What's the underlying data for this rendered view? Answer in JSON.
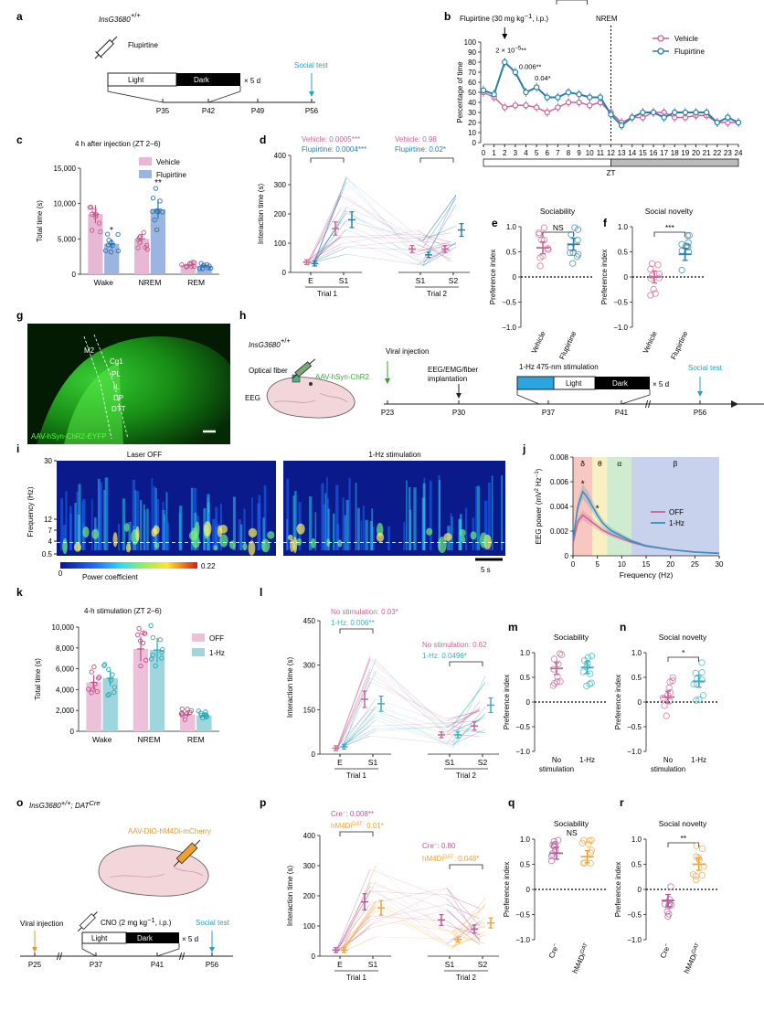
{
  "colors": {
    "vehicle": "#c86496",
    "flupirtine": "#2a7fa8",
    "off": "#c86496",
    "hz": "#3aaebf",
    "cre": "#b4589a",
    "hm4di": "#eda33a",
    "bar_veh": "#e6b8d4",
    "bar_flu": "#9ab6e0",
    "bar_off": "#ecc0d8",
    "bar_hz": "#9fd6de"
  },
  "panels": {
    "a": {
      "letter": "a",
      "genotype": "InsG3680",
      "genotype_sup": "+/+",
      "drug": "Flupirtine",
      "light": "Light",
      "dark": "Dark",
      "times": "× 5 d",
      "social": "Social test",
      "ticks": [
        "P35",
        "P42",
        "P49",
        "P56"
      ]
    },
    "b": {
      "letter": "b",
      "drug_label": "Flupirtine (30 mg kg",
      "drug_label2": "−1",
      "drug_label3": ", i.p.)",
      "nrem": "NREM",
      "ylabel": "Percentage of time",
      "xlabel": "ZT",
      "ann": [
        "2 × 10",
        "−5",
        "**",
        "0.006**",
        "0.04*"
      ],
      "legend": [
        "Vehicle",
        "Flupirtine"
      ],
      "yticks": [
        "0",
        "10",
        "20",
        "30",
        "40",
        "50",
        "60",
        "70",
        "80",
        "90",
        "100"
      ],
      "xticks": [
        "0",
        "1",
        "2",
        "3",
        "4",
        "5",
        "6",
        "7",
        "8",
        "9",
        "10",
        "11",
        "12",
        "13",
        "14",
        "15",
        "16",
        "17",
        "18",
        "19",
        "20",
        "21",
        "22",
        "23",
        "24"
      ]
    },
    "c": {
      "letter": "c",
      "title": "4 h after injection (ZT 2–6)",
      "ylabel": "Total time (s)",
      "yticks": [
        "0",
        "5,000",
        "10,000",
        "15,000"
      ],
      "cats": [
        "Wake",
        "NREM",
        "REM"
      ],
      "legend": [
        "Vehicle",
        "Flupirtine"
      ],
      "stars": [
        "*",
        "**"
      ]
    },
    "d": {
      "letter": "d",
      "ylabel": "Interaction time (s)",
      "yticks": [
        "0",
        "100",
        "200",
        "300",
        "400"
      ],
      "xticks": [
        "E",
        "S1",
        "S1",
        "S2"
      ],
      "trials": [
        "Trial 1",
        "Trial 2"
      ],
      "ann1": [
        "Vehicle: 0.0005***",
        "Flupirtine: 0.0004***"
      ],
      "ann2": [
        "Vehicle: 0.98",
        "Flupirtine: 0.02*"
      ]
    },
    "e": {
      "letter": "e",
      "title": "Sociability",
      "sig": "NS",
      "ylabel": "Preference index",
      "yticks": [
        "−1.0",
        "−0.5",
        "0",
        "0.5",
        "1.0"
      ],
      "cats": [
        "Vehicle",
        "Flupirtine"
      ]
    },
    "f": {
      "letter": "f",
      "title": "Social novelty",
      "sig": "***",
      "ylabel": "Preference index",
      "yticks": [
        "−1.0",
        "−0.5",
        "0",
        "0.5",
        "1.0"
      ],
      "cats": [
        "Vehicle",
        "Flupirtine"
      ]
    },
    "g": {
      "letter": "g",
      "regions": [
        "M2",
        "Cg1",
        "PL",
        "IL",
        "DP",
        "DTT"
      ],
      "caption": "AAV-hSyn-ChR2-EYFP"
    },
    "h": {
      "letter": "h",
      "genotype": "InsG3680",
      "genotype_sup": "+/+",
      "fiber": "Optical fiber",
      "virus": "AAV-hSyn-ChR2",
      "eeg": "EEG",
      "viral": "Viral injection",
      "implant1": "EEG/EMG/fiber",
      "implant2": "implantation",
      "stim": "1-Hz 475-nm stimulation",
      "light": "Light",
      "dark": "Dark",
      "times": "× 5 d",
      "social": "Social test",
      "ticks": [
        "P23",
        "P30",
        "P37",
        "P41",
        "P56"
      ]
    },
    "i": {
      "letter": "i",
      "titles": [
        "Laser OFF",
        "1-Hz stimulation"
      ],
      "ylabel": "Frequency (Hz)",
      "yticks": [
        "30",
        "12",
        "7",
        "4",
        "0.5"
      ],
      "cbar": [
        "0",
        "0.22"
      ],
      "cbar_label": "Power coefficient",
      "scale": "5 s"
    },
    "j": {
      "letter": "j",
      "ylabel": "EEG power (mV",
      "ylabel_sup": "2",
      "ylabel_end": " Hz",
      "ylabel_sup2": "−1",
      "ylabel_close": ")",
      "xlabel": "Frequency (Hz)",
      "yticks": [
        "0",
        "0.002",
        "0.004",
        "0.006",
        "0.008"
      ],
      "xticks": [
        "0",
        "5",
        "10",
        "15",
        "20",
        "25",
        "30"
      ],
      "bands": [
        "δ",
        "θ",
        "α",
        "β"
      ],
      "legend": [
        "OFF",
        "1-Hz"
      ],
      "stars": [
        "*",
        "*"
      ]
    },
    "k": {
      "letter": "k",
      "title": "4-h stimulation (ZT 2–6)",
      "ylabel": "Total time (s)",
      "yticks": [
        "0",
        "2,000",
        "4,000",
        "6,000",
        "8,000",
        "10,000"
      ],
      "cats": [
        "Wake",
        "NREM",
        "REM"
      ],
      "legend": [
        "OFF",
        "1-Hz"
      ]
    },
    "l": {
      "letter": "l",
      "ylabel": "Interaction time (s)",
      "yticks": [
        "0",
        "150",
        "300",
        "450"
      ],
      "xticks": [
        "E",
        "S1",
        "S1",
        "S2"
      ],
      "trials": [
        "Trial 1",
        "Trial 2"
      ],
      "ann1": [
        "No stimulation: 0.03*",
        "1-Hz: 0.006**"
      ],
      "ann2": [
        "No stimulation: 0.62",
        "1-Hz: 0.0496*"
      ]
    },
    "m": {
      "letter": "m",
      "title": "Sociability",
      "ylabel": "Preference index",
      "yticks": [
        "−1.0",
        "−0.5",
        "0",
        "0.5",
        "1.0"
      ],
      "cats": [
        "No",
        "stimulation",
        "1-Hz"
      ]
    },
    "n": {
      "letter": "n",
      "title": "Social novelty",
      "sig": "*",
      "ylabel": "Preference index",
      "yticks": [
        "−1.0",
        "−0.5",
        "0",
        "0.5",
        "1.0"
      ],
      "cats": [
        "No",
        "stimulation",
        "1-Hz"
      ]
    },
    "o": {
      "letter": "o",
      "genotype": "InsG3680",
      "genotype_sup": "+/+",
      "genotype2": "; DAT",
      "genotype2_sup": "Cre",
      "virus": "AAV-DIO-hM4Di-mCherry",
      "viral": "Viral injection",
      "cno": "CNO (2 mg kg",
      "cno_sup": "−1",
      "cno_end": ", i.p.)",
      "light": "Light",
      "dark": "Dark",
      "times": "× 5 d",
      "social": "Social test",
      "ticks": [
        "P25",
        "P37",
        "P41",
        "P56"
      ]
    },
    "p": {
      "letter": "p",
      "ylabel": "Interaction time (s)",
      "yticks": [
        "0",
        "100",
        "200",
        "300",
        "400"
      ],
      "xticks": [
        "E",
        "S1",
        "S1",
        "S2"
      ],
      "trials": [
        "Trial 1",
        "Trial 2"
      ],
      "ann1": [
        "Cre",
        "−",
        ": 0.008**",
        "hM4Di",
        "DAT",
        ": 0.01*"
      ],
      "ann2": [
        "Cre",
        "−",
        ": 0.80",
        "hM4Di",
        "DAT",
        ": 0.048*"
      ]
    },
    "q": {
      "letter": "q",
      "title": "Sociability",
      "sig": "NS",
      "ylabel": "Preference index",
      "yticks": [
        "−1.0",
        "−0.5",
        "0",
        "0.5",
        "1.0"
      ],
      "cats": [
        "Cre",
        "−",
        "hM4Di",
        "DAT"
      ]
    },
    "r": {
      "letter": "r",
      "title": "Social novelty",
      "sig": "**",
      "ylabel": "Preference index",
      "yticks": [
        "−1.0",
        "−0.5",
        "0",
        "0.5",
        "1.0"
      ],
      "cats": [
        "Cre",
        "−",
        "hM4Di",
        "DAT"
      ]
    }
  },
  "chart_data": [
    {
      "panel": "b",
      "type": "line",
      "x": [
        0,
        1,
        2,
        3,
        4,
        5,
        6,
        7,
        8,
        9,
        10,
        11,
        12,
        13,
        14,
        15,
        16,
        17,
        18,
        19,
        20,
        21,
        22,
        23,
        24
      ],
      "series": [
        {
          "name": "Vehicle",
          "values": [
            50,
            45,
            35,
            37,
            37,
            35,
            30,
            35,
            40,
            40,
            37,
            40,
            30,
            20,
            25,
            25,
            30,
            30,
            25,
            25,
            27,
            27,
            20,
            20,
            20
          ]
        },
        {
          "name": "Flupirtine",
          "values": [
            52,
            48,
            80,
            70,
            50,
            55,
            45,
            45,
            50,
            48,
            45,
            45,
            28,
            17,
            25,
            30,
            30,
            25,
            30,
            30,
            30,
            30,
            20,
            25,
            20
          ]
        }
      ],
      "ylim": [
        0,
        100
      ],
      "xlim": [
        0,
        24
      ]
    },
    {
      "panel": "c",
      "type": "bar",
      "categories": [
        "Wake",
        "NREM",
        "REM"
      ],
      "series": [
        {
          "name": "Vehicle",
          "values": [
            8500,
            5000,
            1300
          ]
        },
        {
          "name": "Flupirtine",
          "values": [
            4300,
            9200,
            1200
          ]
        }
      ],
      "ylim": [
        0,
        15000
      ]
    },
    {
      "panel": "d",
      "type": "line",
      "categories": [
        "E",
        "S1",
        "S1",
        "S2"
      ],
      "series": [
        {
          "name": "Vehicle",
          "values": [
            35,
            150,
            80,
            80
          ]
        },
        {
          "name": "Flupirtine",
          "values": [
            30,
            180,
            60,
            145
          ]
        }
      ],
      "ylim": [
        0,
        400
      ]
    },
    {
      "panel": "e",
      "type": "scatter",
      "categories": [
        "Vehicle",
        "Flupirtine"
      ],
      "values": [
        0.58,
        0.65
      ],
      "ylim": [
        -1,
        1
      ]
    },
    {
      "panel": "f",
      "type": "scatter",
      "categories": [
        "Vehicle",
        "Flupirtine"
      ],
      "values": [
        0.0,
        0.45
      ],
      "ylim": [
        -1,
        1
      ]
    },
    {
      "panel": "j",
      "type": "line",
      "x": [
        0,
        1,
        2,
        3,
        4,
        5,
        6,
        7,
        8,
        10,
        12,
        15,
        20,
        25,
        30
      ],
      "series": [
        {
          "name": "OFF",
          "values": [
            0.001,
            0.0028,
            0.0033,
            0.003,
            0.0027,
            0.0024,
            0.0021,
            0.0019,
            0.0017,
            0.0014,
            0.0011,
            0.0008,
            0.0005,
            0.0003,
            0.0002
          ]
        },
        {
          "name": "1-Hz",
          "values": [
            0.0012,
            0.004,
            0.0052,
            0.0047,
            0.004,
            0.0033,
            0.0027,
            0.0023,
            0.002,
            0.0016,
            0.0012,
            0.0008,
            0.0005,
            0.0003,
            0.0002
          ]
        }
      ],
      "ylim": [
        0,
        0.008
      ],
      "xlim": [
        0,
        30
      ]
    },
    {
      "panel": "k",
      "type": "bar",
      "categories": [
        "Wake",
        "NREM",
        "REM"
      ],
      "series": [
        {
          "name": "OFF",
          "values": [
            4700,
            7900,
            1600
          ]
        },
        {
          "name": "1-Hz",
          "values": [
            5100,
            7800,
            1500
          ]
        }
      ],
      "ylim": [
        0,
        10000
      ]
    },
    {
      "panel": "l",
      "type": "line",
      "categories": [
        "E",
        "S1",
        "S1",
        "S2"
      ],
      "series": [
        {
          "name": "No stimulation",
          "values": [
            20,
            185,
            65,
            95
          ]
        },
        {
          "name": "1-Hz",
          "values": [
            25,
            170,
            65,
            165
          ]
        }
      ],
      "ylim": [
        0,
        450
      ]
    },
    {
      "panel": "m",
      "type": "scatter",
      "categories": [
        "No stimulation",
        "1-Hz"
      ],
      "values": [
        0.68,
        0.7
      ],
      "ylim": [
        -1,
        1
      ]
    },
    {
      "panel": "n",
      "type": "scatter",
      "categories": [
        "No stimulation",
        "1-Hz"
      ],
      "values": [
        0.1,
        0.42
      ],
      "ylim": [
        -1,
        1
      ]
    },
    {
      "panel": "p",
      "type": "line",
      "categories": [
        "E",
        "S1",
        "S1",
        "S2"
      ],
      "series": [
        {
          "name": "Cre−",
          "values": [
            20,
            180,
            120,
            90
          ]
        },
        {
          "name": "hM4Di DAT",
          "values": [
            20,
            160,
            55,
            110
          ]
        }
      ],
      "ylim": [
        0,
        400
      ]
    },
    {
      "panel": "q",
      "type": "scatter",
      "categories": [
        "Cre−",
        "hM4Di DAT"
      ],
      "values": [
        0.72,
        0.65
      ],
      "ylim": [
        -1,
        1
      ]
    },
    {
      "panel": "r",
      "type": "scatter",
      "categories": [
        "Cre−",
        "hM4Di DAT"
      ],
      "values": [
        -0.22,
        0.5
      ],
      "ylim": [
        -1,
        1
      ]
    }
  ]
}
